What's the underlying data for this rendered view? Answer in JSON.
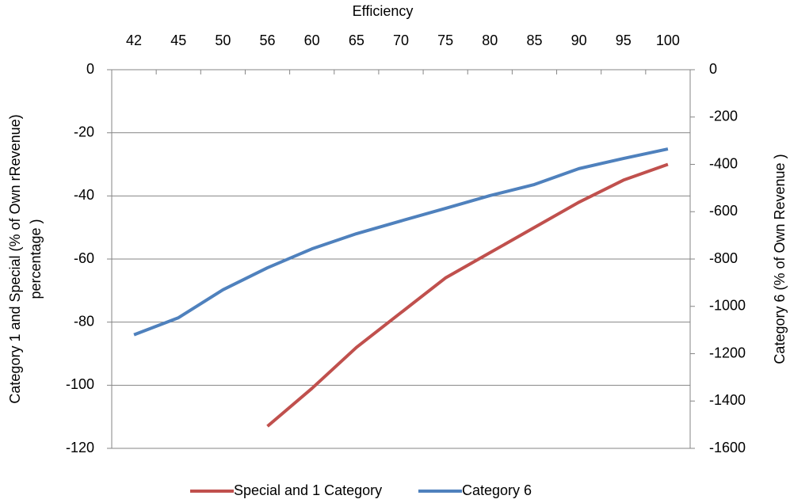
{
  "chart_data": {
    "type": "line",
    "xlabel": "Efficiency",
    "ylabel": [
      "Category 1 and Special  (% of Own rRevenue)",
      "percentage )"
    ],
    "y2label": "Category 6 (% of Own  Revenue )",
    "categories": [
      42,
      45,
      50,
      56,
      60,
      65,
      70,
      75,
      80,
      85,
      90,
      95,
      100
    ],
    "ylim": [
      -120,
      0
    ],
    "yticks": [
      0,
      -20,
      -40,
      -60,
      -80,
      -100,
      -120
    ],
    "y2lim": [
      -1600,
      0
    ],
    "y2ticks": [
      0,
      -200,
      -400,
      -600,
      -800,
      -1000,
      -1200,
      -1400,
      -1600
    ],
    "grid": true,
    "legend": "bottom",
    "series": [
      {
        "name": "Special and 1 Category",
        "color": "#c0504d",
        "values": [
          null,
          null,
          null,
          -113,
          -101,
          -88,
          -77,
          -66,
          -58,
          -50,
          -42,
          -35,
          -30
        ]
      },
      {
        "name": "Category 6",
        "color": "#4f81bd",
        "axis": "y2",
        "values": [
          -1120,
          -1048,
          -930,
          -837,
          -757,
          -693,
          -639,
          -586,
          -532,
          -485,
          -418,
          -375,
          -335
        ]
      }
    ]
  }
}
